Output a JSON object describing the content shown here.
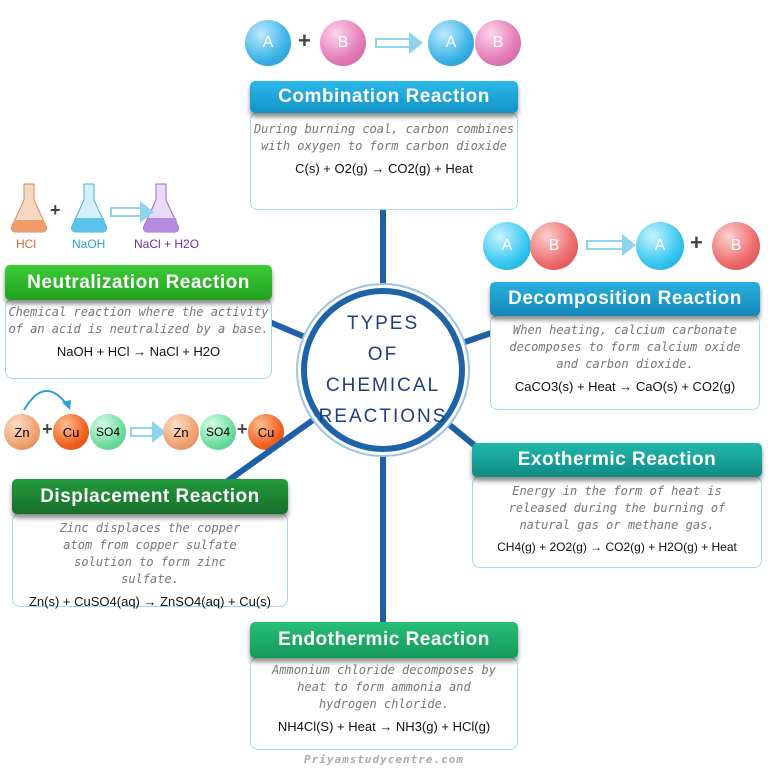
{
  "center": {
    "line1": "TYPES",
    "line2": "OF",
    "line3": "CHEMICAL",
    "line4": "REACTIONS"
  },
  "colors": {
    "spoke": "#1f5fa8",
    "circle_border": "#1e63a8",
    "text": "#1e3f80"
  },
  "combination": {
    "title": "Combination Reaction",
    "desc": "During burning coal, carbon combines with oxygen to form carbon dioxide",
    "equation": "C(s) + O2(g) → CO2(g) + Heat",
    "atoms": [
      "A",
      "+",
      "B",
      "A",
      "B"
    ],
    "color": "#1aa6dc"
  },
  "neutralization": {
    "title": "Neutralization Reaction",
    "desc": "Chemical reaction where the activity of an acid is neutralized by a base.",
    "equation": "NaOH + HCl → NaCl + H2O",
    "flasks": [
      "HCl",
      "+",
      "NaOH",
      "NaCl + H2O"
    ],
    "color": "#2cb52a"
  },
  "decomposition": {
    "title": "Decomposition Reaction",
    "desc": "When heating, calcium carbonate decomposes to form calcium oxide and carbon dioxide.",
    "equation": "CaCO3(s) + Heat → CaO(s) + CO2(g)",
    "atoms": [
      "A",
      "B",
      "A",
      "+",
      "B"
    ],
    "color": "#1a9cc8"
  },
  "exothermic": {
    "title": "Exothermic Reaction",
    "desc": "Energy in the form of heat is released during the burning of natural gas or methane gas.",
    "equation": "CH4(g) + 2O2(g) → CO2(g) + H2O(g) + Heat",
    "color": "#17a49a"
  },
  "displacement": {
    "title": "Displacement Reaction",
    "desc": "Zinc displaces the copper atom from copper sulfate solution to form zinc sulfate.",
    "equation": "Zn(s) + CuSO4(aq) → ZnSO4(aq) + Cu(s)",
    "atoms": [
      "Zn",
      "+",
      "Cu",
      "SO4",
      "Zn",
      "SO4",
      "+",
      "Cu"
    ],
    "color": "#1e7e34"
  },
  "endothermic": {
    "title": "Endothermic Reaction",
    "desc": "Ammonium chloride decomposes by heat to form ammonia and hydrogen chloride.",
    "equation": "NH4Cl(S) + Heat → NH3(g) + HCl(g)",
    "color": "#1fae6a"
  },
  "watermark": "Priyamstudycentre.com"
}
